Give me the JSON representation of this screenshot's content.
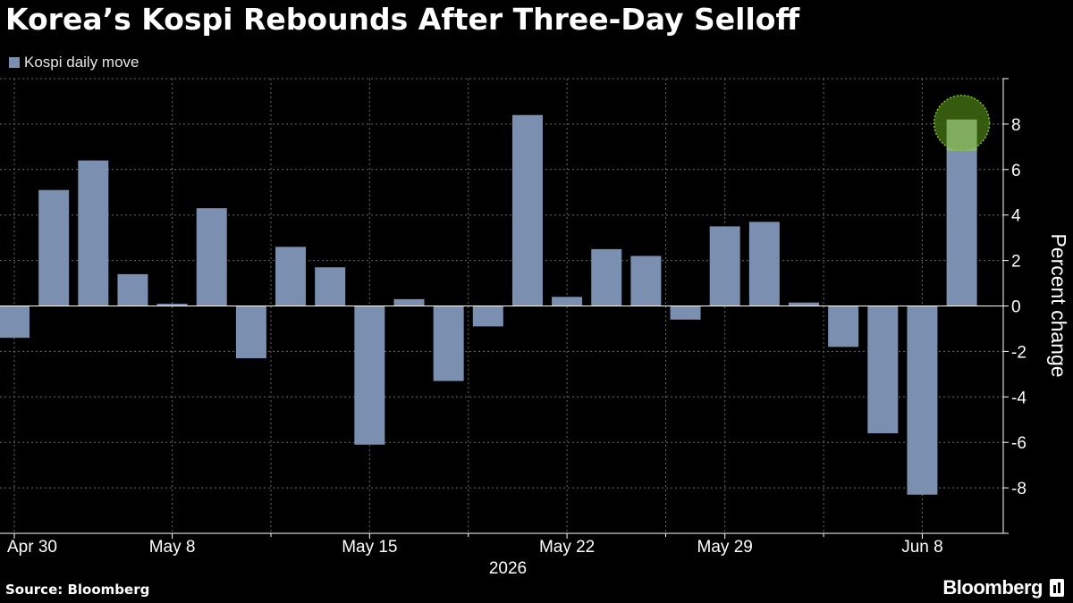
{
  "title": "Korea’s Kospi Rebounds After Three-Day Selloff",
  "source": "Source: Bloomberg",
  "brand": "Bloomberg",
  "brand_icon": "bloomberg-bars-icon",
  "colors": {
    "background": "#000000",
    "bar": "#7b90b0",
    "highlight_ring": "#3f6b10",
    "highlight_fill": "#8fbd6a",
    "grid": "#6a6a6a",
    "text": "#ffffff"
  },
  "chart_data": {
    "type": "bar",
    "title": "Korea’s Kospi Rebounds After Three-Day Selloff",
    "series": [
      {
        "name": "Kospi daily move",
        "values": [
          -1.4,
          5.1,
          6.4,
          1.4,
          0.1,
          4.3,
          -2.3,
          2.6,
          1.7,
          -6.1,
          0.3,
          -3.3,
          -0.9,
          8.4,
          0.4,
          2.5,
          2.2,
          -0.6,
          3.5,
          3.7,
          0.15,
          -1.8,
          -5.6,
          -8.3,
          8.2
        ]
      }
    ],
    "x_tick_labels": [
      "Apr 30",
      "May 8",
      "May 15",
      "May 22",
      "May 29",
      "Jun 8"
    ],
    "x_year_label": "2026",
    "ylabel": "Percent change",
    "ylim": [
      -10,
      10
    ],
    "y_ticks": [
      8,
      6,
      4,
      2,
      0,
      -2,
      -4,
      -6,
      -8
    ],
    "y_axis_side": "right",
    "grid": true,
    "legend": "top-left",
    "highlight": {
      "index": 24,
      "note": "green circle marker on last bar"
    }
  }
}
